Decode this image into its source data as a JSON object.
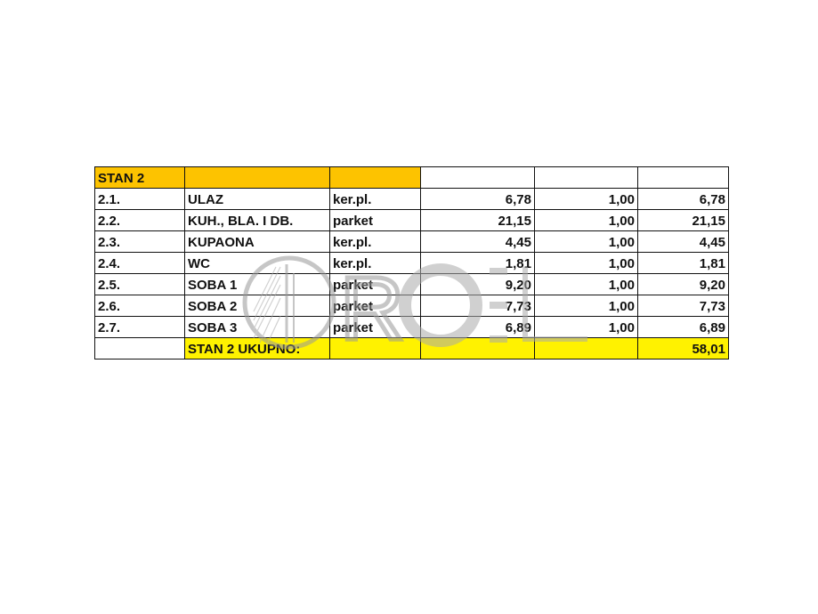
{
  "header": {
    "title": "STAN 2"
  },
  "rows": [
    {
      "no": "2.1.",
      "room": "ULAZ",
      "floor": "ker.pl.",
      "area": "6,78",
      "coef": "1,00",
      "total": "6,78"
    },
    {
      "no": "2.2.",
      "room": "KUH., BLA. I DB.",
      "floor": "parket",
      "area": "21,15",
      "coef": "1,00",
      "total": "21,15"
    },
    {
      "no": "2.3.",
      "room": "KUPAONA",
      "floor": "ker.pl.",
      "area": "4,45",
      "coef": "1,00",
      "total": "4,45"
    },
    {
      "no": "2.4.",
      "room": "WC",
      "floor": "ker.pl.",
      "area": "1,81",
      "coef": "1,00",
      "total": "1,81"
    },
    {
      "no": "2.5.",
      "room": "SOBA 1",
      "floor": "parket",
      "area": "9,20",
      "coef": "1,00",
      "total": "9,20"
    },
    {
      "no": "2.6.",
      "room": "SOBA 2",
      "floor": "parket",
      "area": "7,73",
      "coef": "1,00",
      "total": "7,73"
    },
    {
      "no": "2.7.",
      "room": "SOBA 3",
      "floor": "parket",
      "area": "6,89",
      "coef": "1,00",
      "total": "6,89"
    }
  ],
  "total": {
    "label": "STAN 2 UKUPNO:",
    "value": "58,01"
  },
  "watermark": {
    "text": "ROEL"
  },
  "colors": {
    "header": "#fdc300",
    "total": "#fff200"
  }
}
